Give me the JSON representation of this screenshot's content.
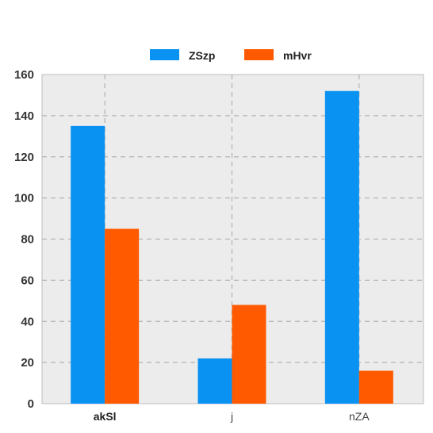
{
  "chart_data": {
    "type": "bar",
    "categories": [
      "akSl",
      "j",
      "nZA"
    ],
    "series": [
      {
        "name": "ZSzp",
        "color": "#0a92f2",
        "values": [
          135,
          22,
          152
        ]
      },
      {
        "name": "mHvr",
        "color": "#ff5a00",
        "values": [
          85,
          48,
          16
        ]
      }
    ],
    "ylim": [
      0,
      160
    ],
    "yticks": [
      "0",
      "20",
      "40",
      "60",
      "80",
      "100",
      "120",
      "140",
      "160"
    ],
    "grid": true,
    "legend_position": "top-center",
    "plot_background": "#ececec",
    "title": "",
    "xlabel": "",
    "ylabel": ""
  }
}
